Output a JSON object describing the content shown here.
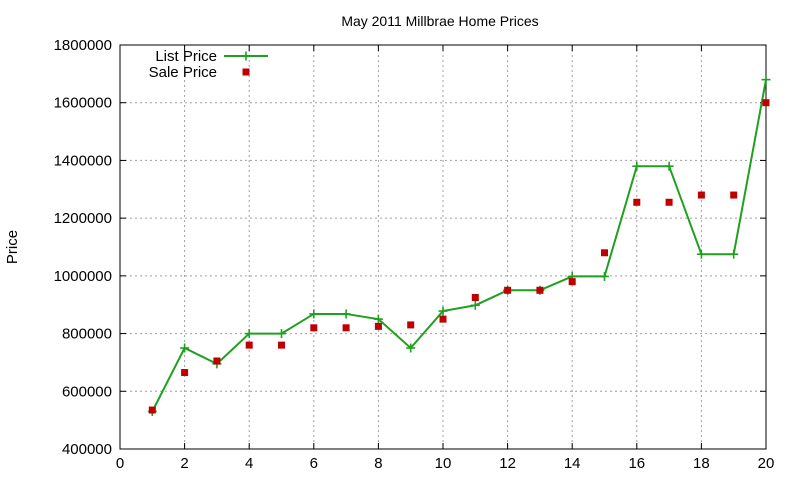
{
  "chart_data": {
    "type": "line",
    "title": "May 2011 Millbrae Home Prices",
    "xlabel": "",
    "ylabel": "Price",
    "xlim": [
      0,
      20
    ],
    "ylim": [
      400000,
      1800000
    ],
    "x_ticks": [
      0,
      2,
      4,
      6,
      8,
      10,
      12,
      14,
      16,
      18,
      20
    ],
    "y_ticks": [
      400000,
      600000,
      800000,
      1000000,
      1200000,
      1400000,
      1600000,
      1800000
    ],
    "x_tick_labels": [
      "0",
      "2",
      "4",
      "6",
      "8",
      "10",
      "12",
      "14",
      "16",
      "18",
      "20"
    ],
    "y_tick_labels": [
      "400000",
      "600000",
      "800000",
      "1000000",
      "1200000",
      "1400000",
      "1600000",
      "1800000"
    ],
    "grid": true,
    "legend_position": "top-left",
    "x": [
      1,
      2,
      3,
      4,
      5,
      6,
      7,
      8,
      9,
      10,
      11,
      12,
      13,
      14,
      15,
      16,
      17,
      18,
      19,
      20
    ],
    "series": [
      {
        "name": "List Price",
        "style": "line-with-plus-markers",
        "color": "#1fa01f",
        "values": [
          530000,
          750000,
          695000,
          800000,
          800000,
          868000,
          868000,
          850000,
          750000,
          878000,
          898000,
          950000,
          950000,
          998000,
          998000,
          1380000,
          1380000,
          1075000,
          1075000,
          1680000
        ]
      },
      {
        "name": "Sale Price",
        "style": "square-markers",
        "color": "#c00000",
        "values": [
          535000,
          665000,
          705000,
          760000,
          760000,
          820000,
          820000,
          825000,
          830000,
          850000,
          925000,
          950000,
          950000,
          980000,
          1080000,
          1255000,
          1255000,
          1280000,
          1280000,
          1600000
        ]
      }
    ]
  }
}
